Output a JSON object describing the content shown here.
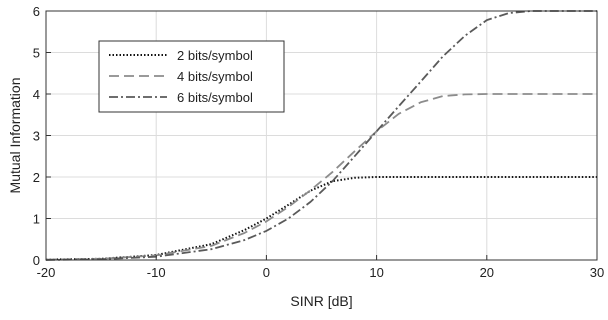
{
  "chart_data": {
    "type": "line",
    "xlabel": "SINR  [dB]",
    "ylabel": "Mutual Information",
    "xlim": [
      -20,
      30
    ],
    "ylim": [
      0,
      6
    ],
    "xticks": [
      -20,
      -10,
      0,
      10,
      20,
      30
    ],
    "yticks": [
      0,
      1,
      2,
      3,
      4,
      5,
      6
    ],
    "xtick_labels": [
      "-20",
      "-10",
      "0",
      "10",
      "20",
      "30"
    ],
    "ytick_labels": [
      "0",
      "1",
      "2",
      "3",
      "4",
      "5",
      "6"
    ],
    "grid": true,
    "legend_position": "upper-left",
    "series": [
      {
        "name": "2 bits/symbol",
        "line_style": "dotted",
        "color": "#111111",
        "x": [
          -20,
          -15,
          -10,
          -5,
          -2,
          0,
          2,
          4,
          6,
          8,
          10,
          12,
          15,
          20,
          25,
          30
        ],
        "y": [
          0.01,
          0.03,
          0.12,
          0.38,
          0.72,
          1.0,
          1.33,
          1.67,
          1.9,
          1.98,
          2.0,
          2.0,
          2.0,
          2.0,
          2.0,
          2.0
        ]
      },
      {
        "name": "4 bits/symbol",
        "line_style": "dashed",
        "color": "#8c8c8c",
        "x": [
          -20,
          -15,
          -10,
          -5,
          -2,
          0,
          2,
          4,
          6,
          8,
          10,
          12,
          14,
          16,
          18,
          20,
          25,
          30
        ],
        "y": [
          0.01,
          0.03,
          0.11,
          0.34,
          0.65,
          0.93,
          1.28,
          1.68,
          2.12,
          2.62,
          3.1,
          3.52,
          3.8,
          3.95,
          3.99,
          4.0,
          4.0,
          4.0
        ]
      },
      {
        "name": "6 bits/symbol",
        "line_style": "dashdot",
        "color": "#5a5a5a",
        "x": [
          -20,
          -15,
          -10,
          -5,
          -2,
          0,
          2,
          4,
          6,
          8,
          10,
          12,
          14,
          16,
          18,
          20,
          22,
          24,
          26,
          30
        ],
        "y": [
          0.0,
          0.02,
          0.08,
          0.26,
          0.48,
          0.7,
          1.0,
          1.4,
          1.9,
          2.5,
          3.1,
          3.7,
          4.3,
          4.9,
          5.4,
          5.78,
          5.95,
          6.0,
          6.0,
          6.0
        ]
      }
    ]
  }
}
